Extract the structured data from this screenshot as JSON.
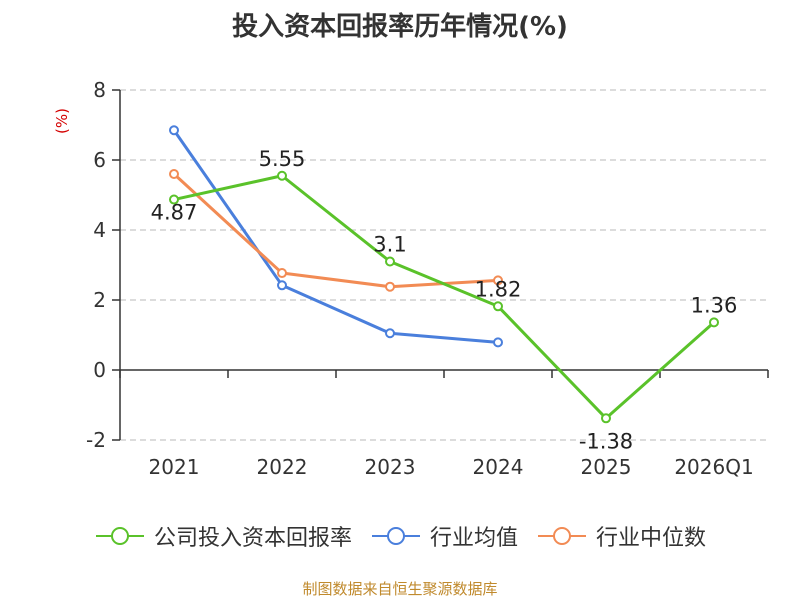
{
  "title": "投入资本回报率历年情况(%)",
  "unit_label": "(%)",
  "source": "制图数据来自恒生聚源数据库",
  "colors": {
    "series_company": "#5ac22a",
    "series_industry_avg": "#4a7fdc",
    "series_industry_median": "#f28b54",
    "grid": "#c8c8c8",
    "axis": "#333333",
    "unit": "#d40000",
    "source": "#c08a2d"
  },
  "chart_data": {
    "type": "line",
    "categories": [
      "2021",
      "2022",
      "2023",
      "2024",
      "2025",
      "2026Q1"
    ],
    "ylim": [
      -2,
      8
    ],
    "yticks": [
      -2,
      0,
      2,
      4,
      6,
      8
    ],
    "grid": true,
    "legend_position": "bottom",
    "series": [
      {
        "name": "公司投入资本回报率",
        "color_key": "series_company",
        "values": [
          4.87,
          5.55,
          3.1,
          1.82,
          -1.38,
          1.36
        ],
        "labels": [
          "4.87",
          "5.55",
          "3.1",
          "1.82",
          "-1.38",
          "1.36"
        ],
        "show_labels": true
      },
      {
        "name": "行业均值",
        "color_key": "series_industry_avg",
        "values": [
          6.85,
          2.42,
          1.05,
          0.79,
          null,
          null
        ],
        "show_labels": false
      },
      {
        "name": "行业中位数",
        "color_key": "series_industry_median",
        "values": [
          5.6,
          2.77,
          2.38,
          2.56,
          null,
          null
        ],
        "show_labels": false
      }
    ]
  }
}
